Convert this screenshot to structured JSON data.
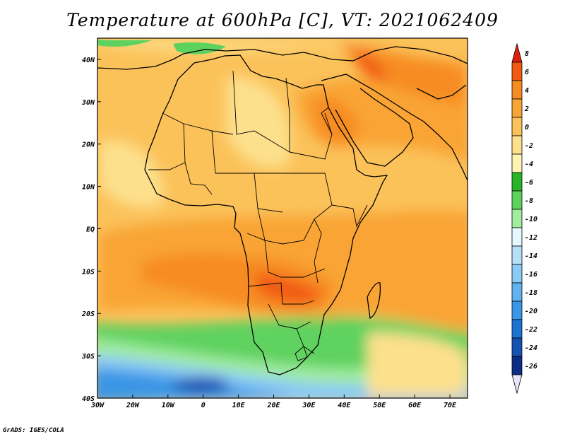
{
  "title": "Temperature at 600hPa [C], VT: 2021062409",
  "credit": "GrADS: IGES/COLA",
  "map": {
    "lon_labels": [
      "30W",
      "20W",
      "10W",
      "0",
      "10E",
      "20E",
      "30E",
      "40E",
      "50E",
      "60E",
      "70E"
    ],
    "lat_labels": [
      "40N",
      "30N",
      "20N",
      "10N",
      "EQ",
      "10S",
      "20S",
      "30S",
      "40S"
    ],
    "extent": {
      "lon_min": -30,
      "lon_max": 75,
      "lat_min": -40,
      "lat_max": 45
    }
  },
  "colorbar": {
    "levels": [
      "8",
      "6",
      "4",
      "2",
      "0",
      "-2",
      "-4",
      "-6",
      "-8",
      "-10",
      "-12",
      "-14",
      "-16",
      "-18",
      "-20",
      "-22",
      "-24",
      "-26"
    ],
    "colors": [
      "#e0200e",
      "#f25a14",
      "#f78c22",
      "#f9a436",
      "#fbc25a",
      "#fde08c",
      "#fdf4b4",
      "#28b428",
      "#5ed25e",
      "#a2eca2",
      "#e4f8ff",
      "#b6e0fa",
      "#8ccaf6",
      "#62b2f0",
      "#3a96e6",
      "#1e74d2",
      "#1652b2",
      "#0c2c86",
      "#e6e6f8"
    ]
  }
}
